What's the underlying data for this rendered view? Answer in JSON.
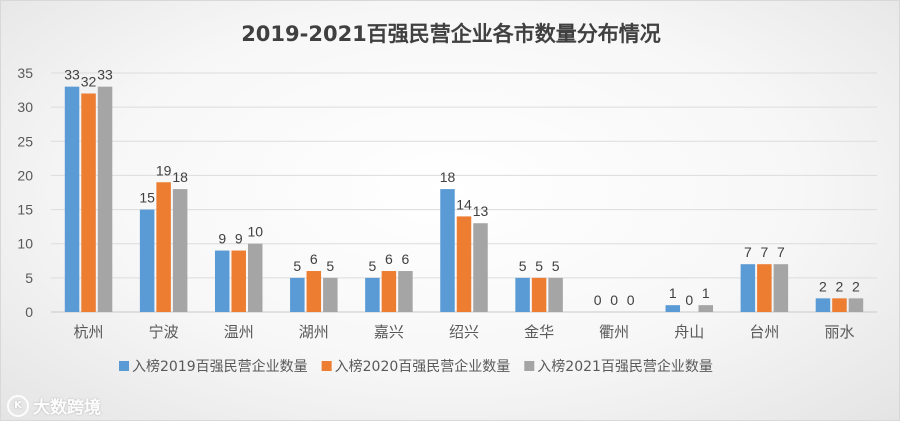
{
  "chart_data": {
    "type": "bar",
    "title": "2019-2021百强民营企业各市数量分布情况",
    "categories": [
      "杭州",
      "宁波",
      "温州",
      "湖州",
      "嘉兴",
      "绍兴",
      "金华",
      "衢州",
      "舟山",
      "台州",
      "丽水"
    ],
    "series": [
      {
        "name": "入榜2019百强民营企业数量",
        "color": "#5b9bd5",
        "values": [
          33,
          15,
          9,
          5,
          5,
          18,
          5,
          0,
          1,
          7,
          2
        ]
      },
      {
        "name": "入榜2020百强民营企业数量",
        "color": "#ed7d31",
        "values": [
          32,
          19,
          9,
          6,
          6,
          14,
          5,
          0,
          0,
          7,
          2
        ]
      },
      {
        "name": "入榜2021百强民营企业数量",
        "color": "#a5a5a5",
        "values": [
          33,
          18,
          10,
          5,
          6,
          13,
          5,
          0,
          1,
          7,
          2
        ]
      }
    ],
    "yticks": [
      0,
      5,
      10,
      15,
      20,
      25,
      30,
      35
    ],
    "ylim": [
      0,
      35
    ],
    "xlabel": "",
    "ylabel": "",
    "grid": true,
    "legend_position": "bottom",
    "data_labels": true
  },
  "watermark": {
    "logo_text": "K",
    "text": "大数跨境"
  }
}
